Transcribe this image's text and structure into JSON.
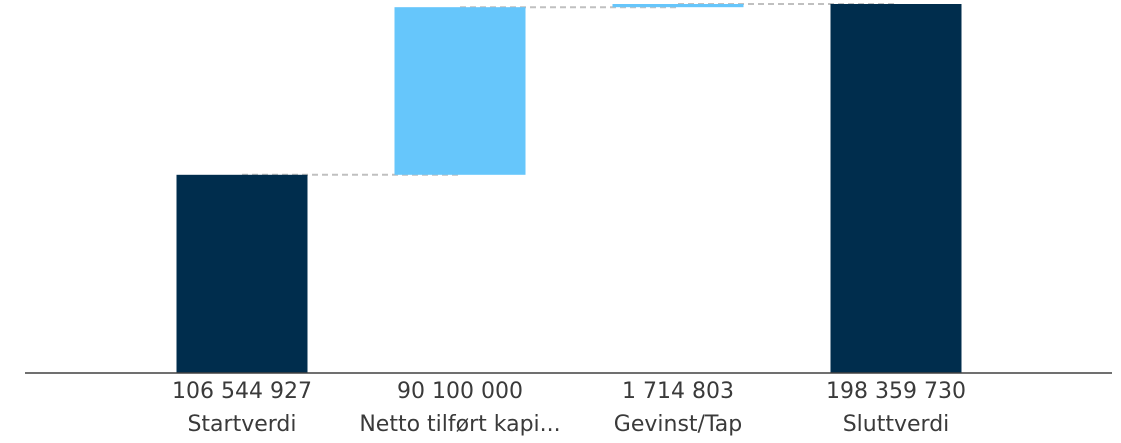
{
  "chart_data": {
    "type": "bar",
    "subtype": "waterfall",
    "title": "",
    "xlabel": "",
    "ylabel": "",
    "categories": [
      "Startverdi",
      "Netto tilført kapi...",
      "Gevinst/Tap",
      "Sluttverdi"
    ],
    "value_labels": [
      "106 544 927",
      "90 100 000",
      "1 714 803",
      "198 359 730"
    ],
    "bars": [
      {
        "category": "Startverdi",
        "kind": "total",
        "start": 0,
        "end": 106544927,
        "color": "#002d4d"
      },
      {
        "category": "Netto tilført kapi...",
        "kind": "increase",
        "start": 106544927,
        "end": 196644927,
        "color": "#66c6fb"
      },
      {
        "category": "Gevinst/Tap",
        "kind": "increase",
        "start": 196644927,
        "end": 198359730,
        "color": "#66c6fb"
      },
      {
        "category": "Sluttverdi",
        "kind": "total",
        "start": 0,
        "end": 198359730,
        "color": "#002d4d"
      }
    ],
    "ylim": [
      0,
      198359730
    ],
    "grid": false,
    "legend": "none",
    "connector_color": "#c0c0c0",
    "axis_color": "#404040"
  }
}
